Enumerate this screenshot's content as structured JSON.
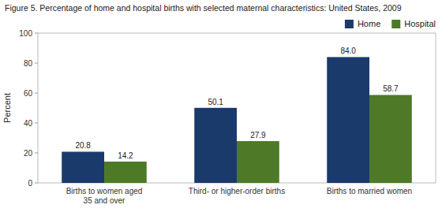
{
  "chart_data": {
    "type": "bar",
    "title": "Figure 5. Percentage of home and hospital births with selected maternal characteristics: United States, 2009",
    "categories": [
      "Births to women aged\n35 and over",
      "Third- or higher-order births",
      "Births to married women"
    ],
    "series": [
      {
        "name": "Home",
        "color": "#1a3a6b",
        "values": [
          20.8,
          50.1,
          84.0
        ],
        "value_labels": [
          "20.8",
          "50.1",
          "84.0"
        ]
      },
      {
        "name": "Hospital",
        "color": "#4e7a28",
        "values": [
          14.2,
          27.9,
          58.7
        ]
      }
    ],
    "ylabel": "Percent",
    "ylim": [
      0,
      100
    ],
    "yticks": [
      0,
      20,
      40,
      60,
      80,
      100
    ],
    "grid": false,
    "legend": "upper right",
    "data_labels": true
  }
}
